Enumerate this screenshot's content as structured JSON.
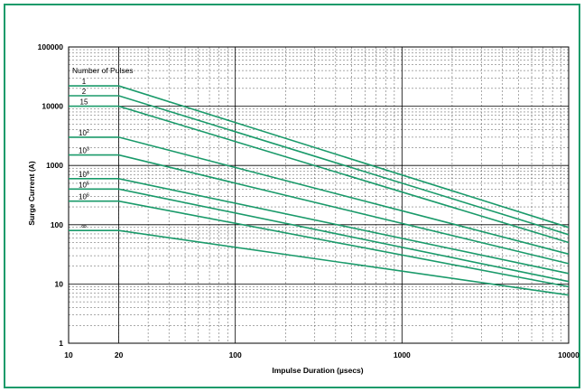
{
  "frame_color": "#1a9a6a",
  "chart_data": {
    "type": "line",
    "xscale": "log",
    "yscale": "log",
    "xlim": [
      10,
      10000
    ],
    "ylim": [
      1,
      100000
    ],
    "grid": true,
    "xlabel": "Impulse Duration (µsecs)",
    "ylabel": "Surge Current (A)",
    "x_ticks": [
      {
        "value": 10,
        "label": "10"
      },
      {
        "value": 20,
        "label": "20"
      },
      {
        "value": 100,
        "label": "100"
      },
      {
        "value": 1000,
        "label": "1000"
      },
      {
        "value": 10000,
        "label": "10000"
      }
    ],
    "y_ticks": [
      {
        "value": 1,
        "label": "1"
      },
      {
        "value": 10,
        "label": "10"
      },
      {
        "value": 100,
        "label": "100"
      },
      {
        "value": 1000,
        "label": "1000"
      },
      {
        "value": 10000,
        "label": "10000"
      },
      {
        "value": 100000,
        "label": "100000"
      }
    ],
    "legend_title": "Number of Pulses",
    "line_color": "#1a9a6a",
    "series": [
      {
        "name": "1",
        "label_base": "1",
        "label_exp": "",
        "x": [
          10,
          20,
          10000
        ],
        "y": [
          22000,
          22000,
          90
        ]
      },
      {
        "name": "2",
        "label_base": "2",
        "label_exp": "",
        "x": [
          10,
          20,
          10000
        ],
        "y": [
          15000,
          15000,
          68
        ]
      },
      {
        "name": "15",
        "label_base": "15",
        "label_exp": "",
        "x": [
          10,
          20,
          10000
        ],
        "y": [
          10000,
          10000,
          50
        ]
      },
      {
        "name": "10^2",
        "label_base": "10",
        "label_exp": "2",
        "x": [
          10,
          20,
          10000
        ],
        "y": [
          3000,
          3000,
          32
        ]
      },
      {
        "name": "10^3",
        "label_base": "10",
        "label_exp": "3",
        "x": [
          10,
          20,
          10000
        ],
        "y": [
          1500,
          1500,
          22
        ]
      },
      {
        "name": "10^4",
        "label_base": "10",
        "label_exp": "4",
        "x": [
          10,
          20,
          10000
        ],
        "y": [
          600,
          600,
          15
        ]
      },
      {
        "name": "10^5",
        "label_base": "10",
        "label_exp": "5",
        "x": [
          10,
          20,
          10000
        ],
        "y": [
          400,
          400,
          11
        ]
      },
      {
        "name": "10^6",
        "label_base": "10",
        "label_exp": "6",
        "x": [
          10,
          20,
          10000
        ],
        "y": [
          250,
          250,
          9
        ]
      },
      {
        "name": "∞",
        "label_base": "∞",
        "label_exp": "",
        "x": [
          10,
          20,
          10000
        ],
        "y": [
          80,
          80,
          6.5
        ]
      }
    ]
  }
}
